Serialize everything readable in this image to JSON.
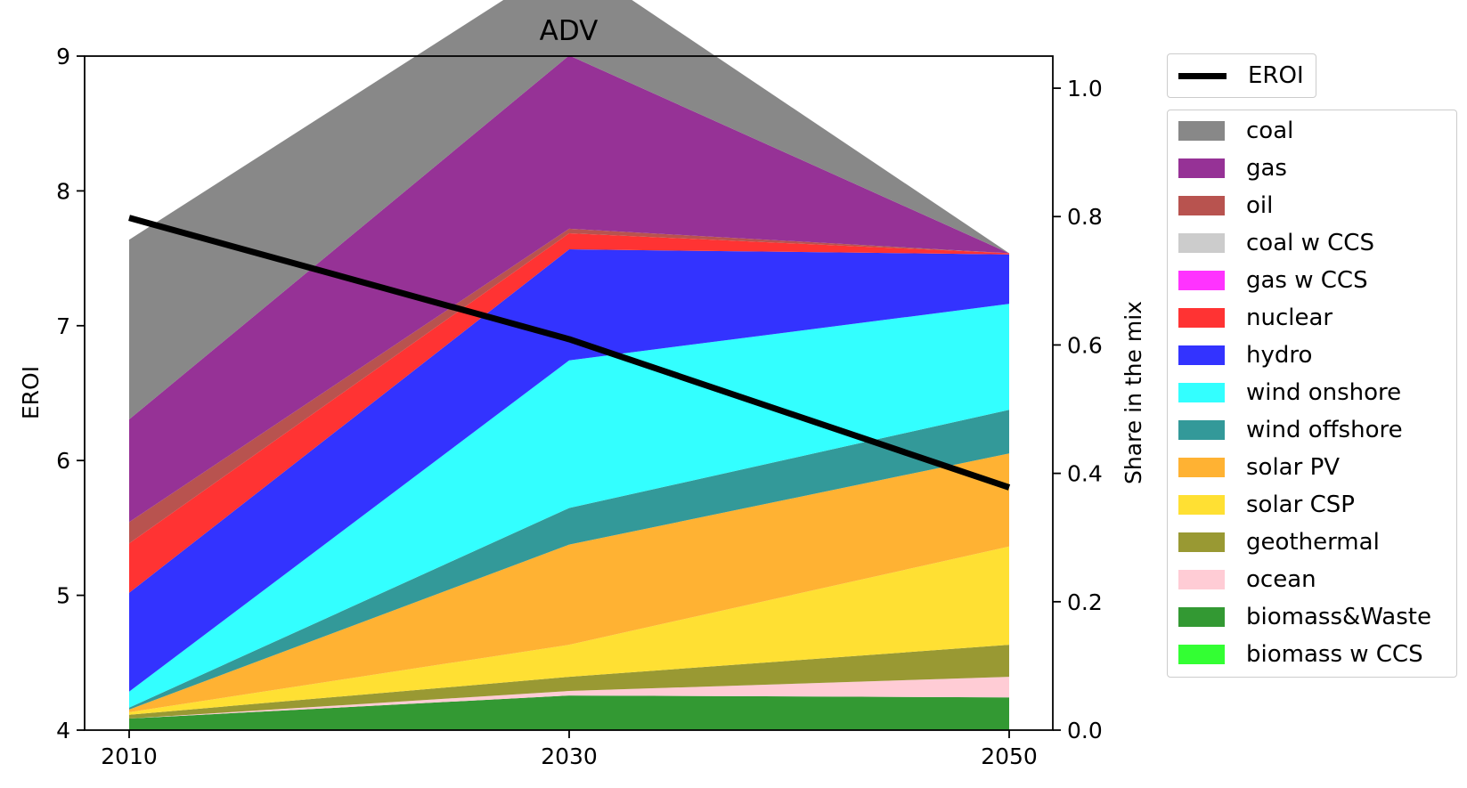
{
  "chart_data": {
    "type": "area",
    "title": "ADV",
    "x": [
      2010,
      2030,
      2050
    ],
    "x_ticks": [
      "2010",
      "2030",
      "2050"
    ],
    "y_left": {
      "label": "EROI",
      "lim": [
        4,
        9
      ],
      "ticks": [
        "4",
        "5",
        "6",
        "7",
        "8",
        "9"
      ]
    },
    "y_right": {
      "label": "Share in the mix",
      "lim": [
        0,
        1.05
      ],
      "ticks": [
        "0.0",
        "0.2",
        "0.4",
        "0.6",
        "0.8",
        "1.0"
      ]
    },
    "grid": false,
    "legend_placement": "outside-right",
    "line_series": [
      {
        "name": "EROI",
        "axis": "left",
        "color": "#000000",
        "values": [
          7.8,
          6.9,
          5.8
        ]
      }
    ],
    "series": [
      {
        "name": "coal",
        "color": "#888888",
        "values": [
          0.28,
          0.152,
          0.0
        ]
      },
      {
        "name": "gas",
        "color": "#963296",
        "values": [
          0.16,
          0.27,
          0.0
        ]
      },
      {
        "name": "oil",
        "color": "#b8534f",
        "values": [
          0.033,
          0.007,
          0.0
        ]
      },
      {
        "name": "coal w CCS",
        "color": "#cccccc",
        "values": [
          0.0,
          0.0,
          0.0
        ]
      },
      {
        "name": "gas w CCS",
        "color": "#ff33ff",
        "values": [
          0.0,
          0.0,
          0.0
        ]
      },
      {
        "name": "nuclear",
        "color": "#ff3333",
        "values": [
          0.077,
          0.025,
          0.002
        ]
      },
      {
        "name": "hydro",
        "color": "#3333ff",
        "values": [
          0.154,
          0.173,
          0.077
        ]
      },
      {
        "name": "wind onshore",
        "color": "#33ffff",
        "values": [
          0.025,
          0.23,
          0.165
        ]
      },
      {
        "name": "wind offshore",
        "color": "#339999",
        "values": [
          0.003,
          0.057,
          0.068
        ]
      },
      {
        "name": "solar PV",
        "color": "#ffb233",
        "values": [
          0.004,
          0.156,
          0.145
        ]
      },
      {
        "name": "solar CSP",
        "color": "#ffe033",
        "values": [
          0.004,
          0.05,
          0.153
        ]
      },
      {
        "name": "geothermal",
        "color": "#999933",
        "values": [
          0.006,
          0.022,
          0.05
        ]
      },
      {
        "name": "ocean",
        "color": "#ffccd5",
        "values": [
          0.0,
          0.007,
          0.032
        ]
      },
      {
        "name": "biomass&Waste",
        "color": "#339933",
        "values": [
          0.018,
          0.054,
          0.051
        ]
      },
      {
        "name": "biomass w CCS",
        "color": "#33ff33",
        "values": [
          0.0,
          0.0,
          0.0
        ]
      }
    ]
  }
}
